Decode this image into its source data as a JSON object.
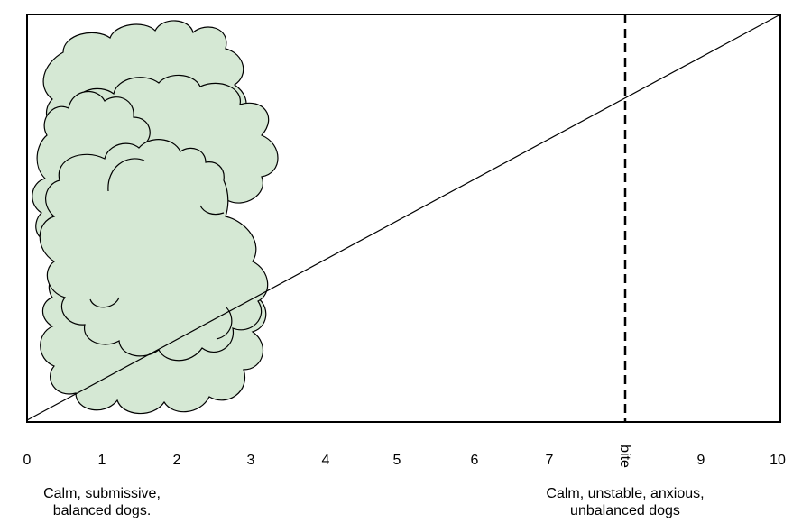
{
  "axis": {
    "range": [
      0,
      10
    ],
    "ticks": [
      "0",
      "1",
      "2",
      "3",
      "4",
      "5",
      "6",
      "7",
      "bite",
      "9",
      "10"
    ]
  },
  "threshold": {
    "value": 8,
    "label": "bite"
  },
  "captions": {
    "left": {
      "line1": "Calm, submissive,",
      "line2": "balanced dogs."
    },
    "right": {
      "line1": "Calm, unstable, anxious,",
      "line2": "unbalanced dogs"
    }
  },
  "colors": {
    "cloud_fill": "#d5e8d4",
    "stroke": "#000000"
  },
  "cluster": {
    "x_range": [
      0.1,
      3.3
    ]
  }
}
